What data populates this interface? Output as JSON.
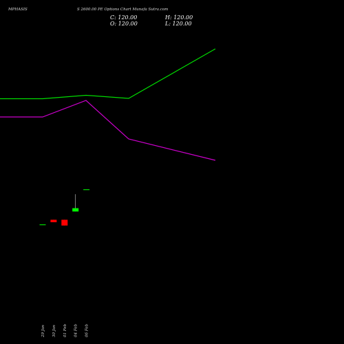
{
  "header": {
    "symbol": "MPHASIS",
    "description": "S 2600.00 PE Options  Chart Munafa Sutra.com"
  },
  "ohlc": {
    "close": "C: 120.00",
    "high": "H: 120.00",
    "open": "O: 120.00",
    "low": "L: 120.00"
  },
  "chart_data": {
    "type": "candlestick",
    "dates": [
      "29 Jan",
      "30 Jan",
      "01 Feb",
      "04 Feb",
      "06 Feb"
    ],
    "candles": [
      {
        "date": "29 Jan",
        "open": 77.5,
        "high": 77.5,
        "low": 77.5,
        "close": 77.5,
        "color": "#00cc00"
      },
      {
        "date": "30 Jan",
        "open": 83,
        "high": 83,
        "low": 80,
        "close": 80,
        "color": "#ff0000"
      },
      {
        "date": "01 Feb",
        "open": 83,
        "high": 83,
        "low": 76,
        "close": 76,
        "color": "#ff0000"
      },
      {
        "date": "04 Feb",
        "open": 93,
        "high": 114,
        "low": 93,
        "close": 97,
        "color": "#00ff00"
      },
      {
        "date": "06 Feb",
        "open": 120,
        "high": 120,
        "low": 120,
        "close": 120,
        "color": "#00cc00"
      }
    ],
    "y_range": [
      20,
      145
    ],
    "overlay_lines": [
      {
        "color": "#00dd00",
        "values": [
          143.5,
          143.5,
          138.5,
          143,
          71
        ]
      },
      {
        "color": "#cc00cc",
        "values": [
          170,
          170,
          146,
          202,
          233
        ]
      }
    ],
    "overlay_scale": "pixel-rows",
    "background": "#000000",
    "grid": false
  }
}
